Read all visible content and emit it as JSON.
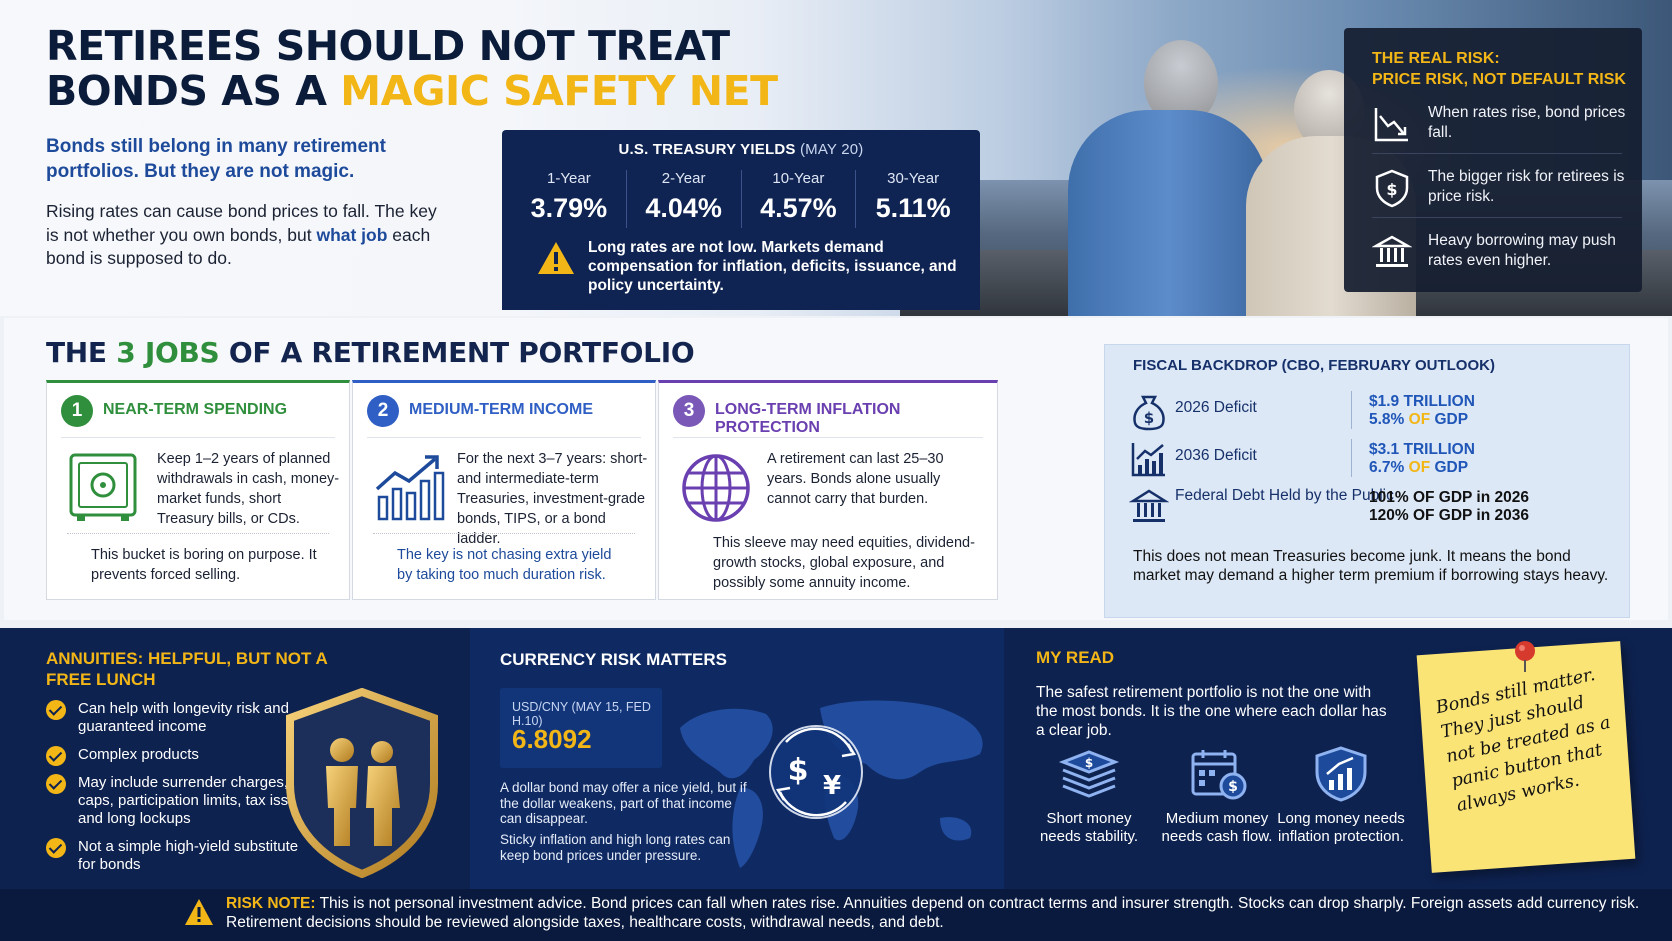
{
  "header": {
    "title_line1": "RETIREES SHOULD NOT TREAT",
    "title_line2_prefix": "BONDS AS A ",
    "title_line2_highlight": "MAGIC SAFETY NET",
    "subtitle": "Bonds still belong in many retirement portfolios. But they are not magic.",
    "intro_part1": "Rising rates can cause bond prices to fall. The key is not whether you own bonds, but ",
    "intro_bold": "what job",
    "intro_part2": " each bond is supposed to do."
  },
  "yields": {
    "heading": "U.S. TREASURY YIELDS",
    "date": "(MAY 20)",
    "items": [
      {
        "label": "1-Year",
        "value": "3.79%"
      },
      {
        "label": "2-Year",
        "value": "4.04%"
      },
      {
        "label": "10-Year",
        "value": "4.57%"
      },
      {
        "label": "30-Year",
        "value": "5.11%"
      }
    ],
    "note": "Long rates are not low. Markets demand compensation for inflation, deficits, issuance, and policy uncertainty."
  },
  "real_risk": {
    "heading_line1": "THE REAL RISK:",
    "heading_line2": "PRICE RISK, NOT DEFAULT RISK",
    "items": [
      {
        "icon": "falling-chart-icon",
        "text": "When rates rise, bond prices fall."
      },
      {
        "icon": "shield-dollar-icon",
        "text": "The bigger risk for retirees is price risk."
      },
      {
        "icon": "bank-icon",
        "text": "Heavy borrowing may push rates even higher."
      }
    ]
  },
  "jobs": {
    "title_pre": "THE ",
    "title_num": "3 JOBS",
    "title_post": " OF A RETIREMENT PORTFOLIO",
    "cards": [
      {
        "num": "1",
        "title": "NEAR-TERM SPENDING",
        "desc": "Keep 1–2 years of planned withdrawals in cash, money-market funds, short Treasury bills, or CDs.",
        "footer": "This bucket is boring on purpose. It prevents forced selling.",
        "color": "#2f8f3c"
      },
      {
        "num": "2",
        "title": "MEDIUM-TERM INCOME",
        "desc": "For the next 3–7 years: short- and intermediate-term Treasuries, investment-grade bonds, TIPS, or a bond ladder.",
        "footer": "The key is not chasing extra yield by taking too much duration risk.",
        "color": "#2f5fc4"
      },
      {
        "num": "3",
        "title": "LONG-TERM INFLATION PROTECTION",
        "desc": "A retirement can last 25–30 years. Bonds alone usually cannot carry that burden.",
        "footer": "This sleeve may need equities, dividend-growth stocks, global exposure, and possibly some annuity income.",
        "color": "#6a3fb0"
      }
    ]
  },
  "fiscal": {
    "heading": "FISCAL BACKDROP (CBO, FEBRUARY OUTLOOK)",
    "rows": [
      {
        "icon": "money-bag-icon",
        "label": "2026 Deficit",
        "value1": "$1.9 TRILLION",
        "value2_num": "5.8%",
        "value2_of": " OF ",
        "value2_gdp": "GDP"
      },
      {
        "icon": "bar-chart-icon",
        "label": "2036 Deficit",
        "value1": "$3.1 TRILLION",
        "value2_num": "6.7%",
        "value2_of": " OF ",
        "value2_gdp": "GDP"
      },
      {
        "icon": "capitol-icon",
        "label": "Federal Debt Held by the Public",
        "value1": "101% OF GDP in 2026",
        "value2_num": "120% OF GDP in 2036",
        "value2_of": "",
        "value2_gdp": ""
      }
    ],
    "note": "This does not mean Treasuries become junk. It means the bond market may demand a higher term premium if borrowing stays heavy."
  },
  "annuities": {
    "heading": "ANNUITIES: HELPFUL, BUT NOT A FREE LUNCH",
    "items": [
      "Can help with longevity risk and guaranteed income",
      "Complex products",
      "May include surrender charges, caps, participation limits, tax issues, and long lockups",
      "Not a simple high-yield substitute for bonds"
    ]
  },
  "currency": {
    "heading": "CURRENCY RISK MATTERS",
    "box_label": "USD/CNY (MAY 15, FED H.10)",
    "box_value": "6.8092",
    "note1": "A dollar bond may offer a nice yield, but if the dollar weakens, part of that income can disappear.",
    "note2": "Sticky inflation and high long rates can keep bond prices under pressure."
  },
  "my_read": {
    "heading": "MY READ",
    "text": "The safest retirement portfolio is not the one with the most bonds. It is the one where each dollar has a clear job.",
    "icons": [
      {
        "icon": "cash-stack-icon",
        "label": "Short money needs stability."
      },
      {
        "icon": "calendar-dollar-icon",
        "label": "Medium money needs cash flow."
      },
      {
        "icon": "shield-growth-icon",
        "label": "Long money needs inflation protection."
      }
    ]
  },
  "sticky_note": "Bonds still matter. They just should not be treated as a panic button that always works.",
  "risk_note": {
    "label": "RISK NOTE:",
    "text": " This is not personal investment advice. Bond prices can fall when rates rise. Annuities depend on contract terms and insurer strength. Stocks can drop sharply. Foreign assets add currency risk. Retirement decisions should be reviewed alongside taxes, healthcare costs, withdrawal needs, and debt."
  },
  "colors": {
    "navy": "#0e2250",
    "gold": "#f2b617",
    "blue": "#1d4a9a",
    "green": "#2f8f3c",
    "purple": "#6a3fb0"
  }
}
